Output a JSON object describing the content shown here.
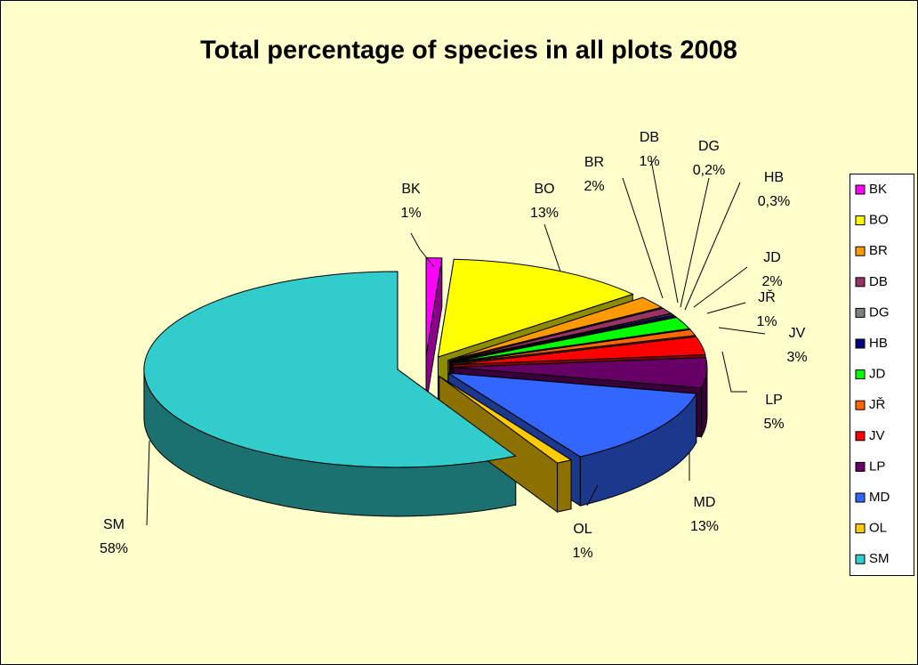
{
  "chart_data": {
    "type": "pie3d",
    "title": "Total percentage of species in all plots 2008",
    "categories": [
      "BK",
      "BO",
      "BR",
      "DB",
      "DG",
      "HB",
      "JD",
      "JŘ",
      "JV",
      "LP",
      "MD",
      "OL",
      "SM"
    ],
    "values": [
      1,
      13,
      2,
      1,
      0.2,
      0.3,
      2,
      1,
      3,
      5,
      13,
      1,
      58
    ],
    "value_labels": [
      "1%",
      "13%",
      "2%",
      "1%",
      "0,2%",
      "0,3%",
      "2%",
      "1%",
      "3%",
      "5%",
      "13%",
      "1%",
      "58%"
    ],
    "colors": [
      "#ff00ff",
      "#ffff00",
      "#ff9900",
      "#993366",
      "#808080",
      "#000080",
      "#00ff00",
      "#ff6600",
      "#ff0000",
      "#660066",
      "#3366ff",
      "#ffcc00",
      "#33cccc"
    ],
    "legend": "right"
  }
}
